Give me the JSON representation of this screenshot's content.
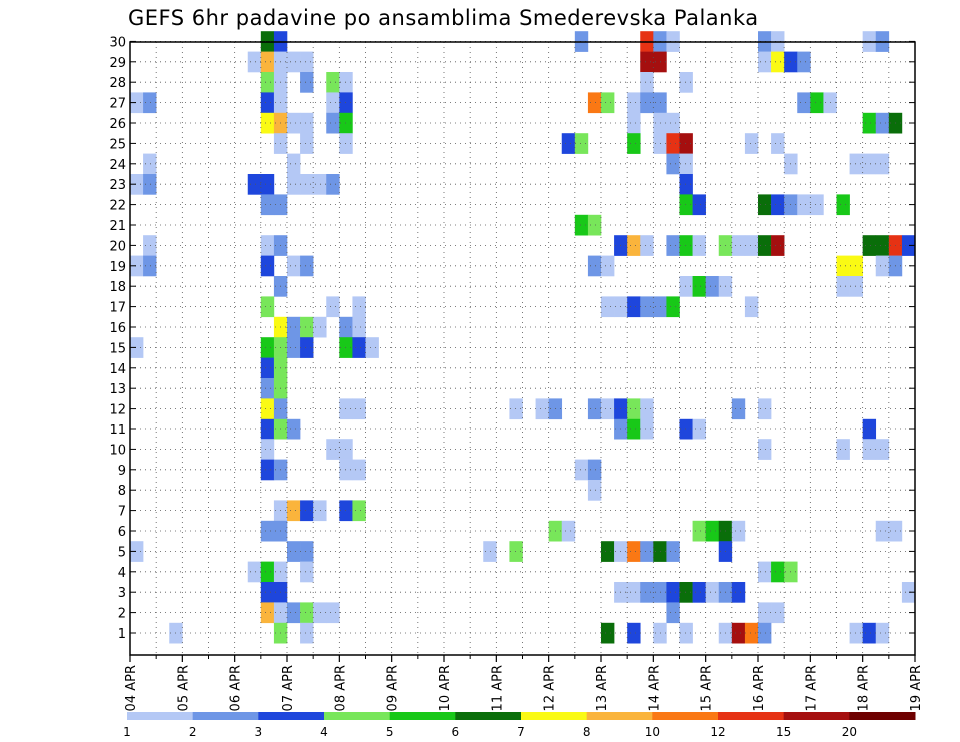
{
  "chart_data": {
    "type": "heatmap",
    "title": "GEFS 6hr padavine po ansamblima Smederevska Palanka",
    "xlabel": "",
    "ylabel": "",
    "x_tick_labels": [
      "04 APR",
      "05 APR",
      "06 APR",
      "07 APR",
      "08 APR",
      "09 APR",
      "10 APR",
      "11 APR",
      "12 APR",
      "13 APR",
      "14 APR",
      "15 APR",
      "16 APR",
      "17 APR",
      "18 APR",
      "19 APR"
    ],
    "y_tick_labels": [
      "1",
      "2",
      "3",
      "4",
      "5",
      "6",
      "7",
      "8",
      "9",
      "10",
      "11",
      "12",
      "13",
      "14",
      "15",
      "16",
      "17",
      "18",
      "19",
      "20",
      "21",
      "22",
      "23",
      "24",
      "25",
      "26",
      "27",
      "28",
      "29",
      "30"
    ],
    "members": [
      1,
      30
    ],
    "time_steps": 60,
    "step_hours": 6,
    "grid": true,
    "legend_position": "bottom",
    "colorbar": {
      "labels": [
        "1",
        "2",
        "3",
        "4",
        "5",
        "6",
        "7",
        "8",
        "10",
        "12",
        "15",
        "20"
      ],
      "colors": [
        "#b4c8f5",
        "#6e96e6",
        "#1e46dc",
        "#78e65a",
        "#18c818",
        "#0a6e0a",
        "#fafa14",
        "#fab43c",
        "#fa7814",
        "#e63214",
        "#a50f0f",
        "#6e0000"
      ]
    },
    "cells": [
      {
        "m": 30,
        "data": [
          [
            11,
            6
          ],
          [
            12,
            3
          ],
          [
            35,
            2
          ],
          [
            40,
            10
          ],
          [
            41,
            2
          ],
          [
            42,
            1
          ],
          [
            49,
            2
          ],
          [
            50,
            1
          ],
          [
            57,
            1
          ],
          [
            58,
            2
          ]
        ]
      },
      {
        "m": 29,
        "data": [
          [
            10,
            1
          ],
          [
            11,
            8
          ],
          [
            12,
            1
          ],
          [
            13,
            1
          ],
          [
            14,
            1
          ],
          [
            40,
            11
          ],
          [
            41,
            11
          ],
          [
            49,
            1
          ],
          [
            50,
            7
          ],
          [
            51,
            3
          ],
          [
            52,
            2
          ]
        ]
      },
      {
        "m": 28,
        "data": [
          [
            11,
            4
          ],
          [
            12,
            1
          ],
          [
            14,
            2
          ],
          [
            16,
            4
          ],
          [
            17,
            1
          ],
          [
            40,
            1
          ],
          [
            43,
            1
          ]
        ]
      },
      {
        "m": 27,
        "data": [
          [
            1,
            1
          ],
          [
            2,
            2
          ],
          [
            11,
            3
          ],
          [
            12,
            1
          ],
          [
            16,
            1
          ],
          [
            17,
            3
          ],
          [
            36,
            9
          ],
          [
            37,
            4
          ],
          [
            39,
            1
          ],
          [
            40,
            2
          ],
          [
            41,
            2
          ],
          [
            52,
            2
          ],
          [
            53,
            5
          ],
          [
            54,
            1
          ]
        ]
      },
      {
        "m": 26,
        "data": [
          [
            11,
            7
          ],
          [
            12,
            8
          ],
          [
            13,
            1
          ],
          [
            14,
            1
          ],
          [
            16,
            2
          ],
          [
            17,
            5
          ],
          [
            39,
            1
          ],
          [
            41,
            1
          ],
          [
            42,
            1
          ],
          [
            57,
            5
          ],
          [
            58,
            2
          ],
          [
            59,
            6
          ]
        ]
      },
      {
        "m": 25,
        "data": [
          [
            12,
            1
          ],
          [
            14,
            1
          ],
          [
            17,
            1
          ],
          [
            34,
            3
          ],
          [
            35,
            4
          ],
          [
            39,
            5
          ],
          [
            41,
            1
          ],
          [
            42,
            10
          ],
          [
            43,
            11
          ],
          [
            48,
            1
          ],
          [
            50,
            1
          ]
        ]
      },
      {
        "m": 24,
        "data": [
          [
            2,
            1
          ],
          [
            13,
            1
          ],
          [
            42,
            2
          ],
          [
            43,
            1
          ],
          [
            51,
            1
          ],
          [
            56,
            1
          ],
          [
            57,
            1
          ],
          [
            58,
            1
          ]
        ]
      },
      {
        "m": 23,
        "data": [
          [
            1,
            1
          ],
          [
            2,
            2
          ],
          [
            10,
            3
          ],
          [
            11,
            3
          ],
          [
            13,
            1
          ],
          [
            14,
            1
          ],
          [
            15,
            1
          ],
          [
            16,
            2
          ],
          [
            43,
            3
          ]
        ]
      },
      {
        "m": 22,
        "data": [
          [
            11,
            2
          ],
          [
            12,
            2
          ],
          [
            43,
            5
          ],
          [
            44,
            3
          ],
          [
            49,
            6
          ],
          [
            50,
            3
          ],
          [
            51,
            2
          ],
          [
            52,
            1
          ],
          [
            53,
            1
          ],
          [
            55,
            5
          ]
        ]
      },
      {
        "m": 21,
        "data": [
          [
            35,
            5
          ],
          [
            36,
            4
          ]
        ]
      },
      {
        "m": 20,
        "data": [
          [
            2,
            1
          ],
          [
            11,
            1
          ],
          [
            12,
            2
          ],
          [
            38,
            3
          ],
          [
            39,
            8
          ],
          [
            40,
            1
          ],
          [
            42,
            2
          ],
          [
            43,
            5
          ],
          [
            44,
            1
          ],
          [
            46,
            4
          ],
          [
            47,
            1
          ],
          [
            48,
            1
          ],
          [
            49,
            6
          ],
          [
            50,
            11
          ],
          [
            57,
            6
          ],
          [
            58,
            6
          ],
          [
            59,
            10
          ],
          [
            60,
            3
          ]
        ]
      },
      {
        "m": 19,
        "data": [
          [
            1,
            1
          ],
          [
            2,
            2
          ],
          [
            11,
            3
          ],
          [
            13,
            1
          ],
          [
            14,
            2
          ],
          [
            36,
            2
          ],
          [
            37,
            1
          ],
          [
            55,
            7
          ],
          [
            56,
            7
          ],
          [
            58,
            1
          ],
          [
            59,
            2
          ]
        ]
      },
      {
        "m": 18,
        "data": [
          [
            12,
            2
          ],
          [
            43,
            1
          ],
          [
            44,
            5
          ],
          [
            45,
            2
          ],
          [
            46,
            1
          ],
          [
            55,
            1
          ],
          [
            56,
            1
          ]
        ]
      },
      {
        "m": 17,
        "data": [
          [
            11,
            4
          ],
          [
            16,
            1
          ],
          [
            18,
            1
          ],
          [
            37,
            1
          ],
          [
            38,
            1
          ],
          [
            39,
            3
          ],
          [
            40,
            2
          ],
          [
            41,
            2
          ],
          [
            42,
            5
          ],
          [
            48,
            1
          ]
        ]
      },
      {
        "m": 16,
        "data": [
          [
            12,
            7
          ],
          [
            13,
            2
          ],
          [
            14,
            4
          ],
          [
            15,
            1
          ],
          [
            17,
            2
          ],
          [
            18,
            1
          ]
        ]
      },
      {
        "m": 15,
        "data": [
          [
            1,
            1
          ],
          [
            11,
            5
          ],
          [
            12,
            4
          ],
          [
            13,
            2
          ],
          [
            14,
            3
          ],
          [
            17,
            5
          ],
          [
            18,
            3
          ],
          [
            19,
            1
          ]
        ]
      },
      {
        "m": 14,
        "data": [
          [
            11,
            3
          ],
          [
            12,
            4
          ]
        ]
      },
      {
        "m": 13,
        "data": [
          [
            11,
            2
          ],
          [
            12,
            4
          ]
        ]
      },
      {
        "m": 12,
        "data": [
          [
            11,
            7
          ],
          [
            12,
            2
          ],
          [
            17,
            1
          ],
          [
            18,
            1
          ],
          [
            30,
            1
          ],
          [
            32,
            1
          ],
          [
            33,
            2
          ],
          [
            36,
            2
          ],
          [
            37,
            1
          ],
          [
            38,
            3
          ],
          [
            39,
            4
          ],
          [
            40,
            1
          ],
          [
            47,
            2
          ],
          [
            49,
            1
          ]
        ]
      },
      {
        "m": 11,
        "data": [
          [
            11,
            3
          ],
          [
            12,
            4
          ],
          [
            13,
            2
          ],
          [
            38,
            2
          ],
          [
            39,
            5
          ],
          [
            40,
            1
          ],
          [
            43,
            3
          ],
          [
            44,
            1
          ],
          [
            57,
            3
          ]
        ]
      },
      {
        "m": 10,
        "data": [
          [
            11,
            1
          ],
          [
            16,
            1
          ],
          [
            17,
            1
          ],
          [
            49,
            1
          ],
          [
            55,
            1
          ],
          [
            57,
            1
          ],
          [
            58,
            1
          ]
        ]
      },
      {
        "m": 9,
        "data": [
          [
            11,
            3
          ],
          [
            12,
            2
          ],
          [
            17,
            1
          ],
          [
            18,
            1
          ],
          [
            35,
            1
          ],
          [
            36,
            2
          ]
        ]
      },
      {
        "m": 8,
        "data": [
          [
            36,
            1
          ]
        ]
      },
      {
        "m": 7,
        "data": [
          [
            12,
            1
          ],
          [
            13,
            8
          ],
          [
            14,
            3
          ],
          [
            15,
            1
          ],
          [
            17,
            3
          ],
          [
            18,
            4
          ]
        ]
      },
      {
        "m": 6,
        "data": [
          [
            11,
            2
          ],
          [
            12,
            2
          ],
          [
            33,
            4
          ],
          [
            34,
            1
          ],
          [
            44,
            4
          ],
          [
            45,
            5
          ],
          [
            46,
            6
          ],
          [
            47,
            1
          ],
          [
            58,
            1
          ],
          [
            59,
            1
          ]
        ]
      },
      {
        "m": 5,
        "data": [
          [
            1,
            1
          ],
          [
            13,
            2
          ],
          [
            14,
            2
          ],
          [
            28,
            1
          ],
          [
            30,
            4
          ],
          [
            37,
            6
          ],
          [
            38,
            1
          ],
          [
            39,
            9
          ],
          [
            40,
            2
          ],
          [
            41,
            6
          ],
          [
            42,
            2
          ],
          [
            46,
            3
          ]
        ]
      },
      {
        "m": 4,
        "data": [
          [
            10,
            1
          ],
          [
            11,
            5
          ],
          [
            12,
            1
          ],
          [
            14,
            1
          ],
          [
            49,
            1
          ],
          [
            50,
            5
          ],
          [
            51,
            4
          ]
        ]
      },
      {
        "m": 3,
        "data": [
          [
            11,
            3
          ],
          [
            12,
            3
          ],
          [
            38,
            1
          ],
          [
            39,
            1
          ],
          [
            40,
            2
          ],
          [
            41,
            2
          ],
          [
            42,
            3
          ],
          [
            43,
            6
          ],
          [
            44,
            3
          ],
          [
            45,
            1
          ],
          [
            46,
            2
          ],
          [
            47,
            3
          ],
          [
            60,
            1
          ]
        ]
      },
      {
        "m": 2,
        "data": [
          [
            11,
            8
          ],
          [
            12,
            1
          ],
          [
            13,
            2
          ],
          [
            14,
            4
          ],
          [
            15,
            1
          ],
          [
            16,
            1
          ],
          [
            42,
            2
          ],
          [
            49,
            1
          ],
          [
            50,
            1
          ]
        ]
      },
      {
        "m": 1,
        "data": [
          [
            4,
            1
          ],
          [
            12,
            4
          ],
          [
            14,
            1
          ],
          [
            37,
            6
          ],
          [
            39,
            3
          ],
          [
            41,
            1
          ],
          [
            43,
            1
          ],
          [
            46,
            1
          ],
          [
            47,
            11
          ],
          [
            48,
            9
          ],
          [
            49,
            2
          ],
          [
            56,
            1
          ],
          [
            57,
            3
          ],
          [
            58,
            1
          ]
        ]
      }
    ]
  }
}
